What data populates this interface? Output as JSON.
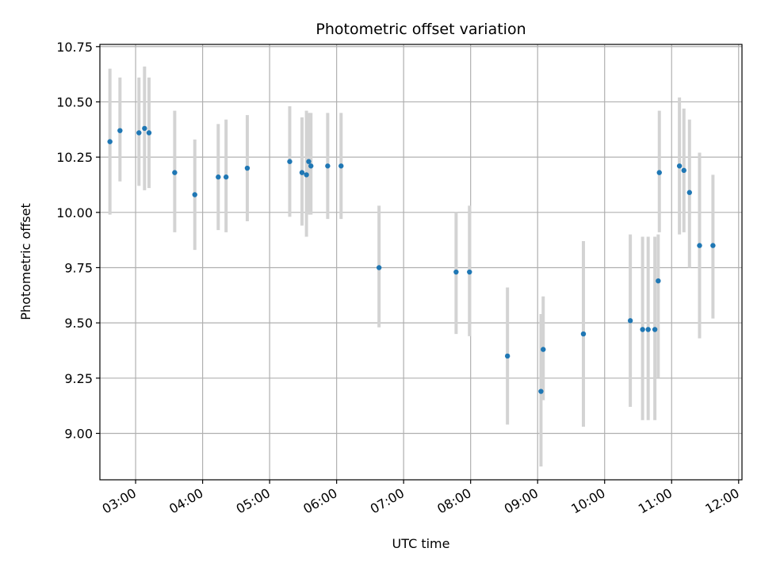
{
  "chart_data": {
    "type": "scatter",
    "title": "Photometric offset variation",
    "xlabel": "UTC time",
    "ylabel": "Photometric offset",
    "x_axis_kind": "time",
    "xlim": [
      "02:28",
      "12:03"
    ],
    "ylim": [
      8.79,
      10.76
    ],
    "grid": true,
    "xticks": [
      "03:00",
      "04:00",
      "05:00",
      "06:00",
      "07:00",
      "08:00",
      "09:00",
      "10:00",
      "11:00",
      "12:00"
    ],
    "yticks": [
      "9.00",
      "9.25",
      "9.50",
      "9.75",
      "10.00",
      "10.25",
      "10.50",
      "10.75"
    ],
    "colors": {
      "point": "#1f77b4",
      "errorbar": "#d3d3d3",
      "grid": "#b0b0b0"
    },
    "series": [
      {
        "points": [
          {
            "x": "02:37",
            "y": 10.32,
            "ylow": 9.99,
            "yhigh": 10.65
          },
          {
            "x": "02:46",
            "y": 10.37,
            "ylow": 10.14,
            "yhigh": 10.61
          },
          {
            "x": "03:03",
            "y": 10.36,
            "ylow": 10.12,
            "yhigh": 10.61
          },
          {
            "x": "03:08",
            "y": 10.38,
            "ylow": 10.1,
            "yhigh": 10.66
          },
          {
            "x": "03:12",
            "y": 10.36,
            "ylow": 10.11,
            "yhigh": 10.61
          },
          {
            "x": "03:35",
            "y": 10.18,
            "ylow": 9.91,
            "yhigh": 10.46
          },
          {
            "x": "03:53",
            "y": 10.08,
            "ylow": 9.83,
            "yhigh": 10.33
          },
          {
            "x": "04:14",
            "y": 10.16,
            "ylow": 9.92,
            "yhigh": 10.4
          },
          {
            "x": "04:21",
            "y": 10.16,
            "ylow": 9.91,
            "yhigh": 10.42
          },
          {
            "x": "04:40",
            "y": 10.2,
            "ylow": 9.96,
            "yhigh": 10.44
          },
          {
            "x": "05:18",
            "y": 10.23,
            "ylow": 9.98,
            "yhigh": 10.48
          },
          {
            "x": "05:29",
            "y": 10.18,
            "ylow": 9.94,
            "yhigh": 10.43
          },
          {
            "x": "05:33",
            "y": 10.17,
            "ylow": 9.89,
            "yhigh": 10.46
          },
          {
            "x": "05:35",
            "y": 10.23,
            "ylow": 9.99,
            "yhigh": 10.45
          },
          {
            "x": "05:37",
            "y": 10.21,
            "ylow": 9.99,
            "yhigh": 10.45
          },
          {
            "x": "05:52",
            "y": 10.21,
            "ylow": 9.97,
            "yhigh": 10.45
          },
          {
            "x": "06:04",
            "y": 10.21,
            "ylow": 9.97,
            "yhigh": 10.45
          },
          {
            "x": "06:38",
            "y": 9.75,
            "ylow": 9.48,
            "yhigh": 10.03
          },
          {
            "x": "07:47",
            "y": 9.73,
            "ylow": 9.45,
            "yhigh": 10.0
          },
          {
            "x": "07:59",
            "y": 9.73,
            "ylow": 9.44,
            "yhigh": 10.03
          },
          {
            "x": "08:33",
            "y": 9.35,
            "ylow": 9.04,
            "yhigh": 9.66
          },
          {
            "x": "09:03",
            "y": 9.19,
            "ylow": 8.85,
            "yhigh": 9.54
          },
          {
            "x": "09:05",
            "y": 9.38,
            "ylow": 9.15,
            "yhigh": 9.62
          },
          {
            "x": "09:41",
            "y": 9.45,
            "ylow": 9.03,
            "yhigh": 9.87
          },
          {
            "x": "10:23",
            "y": 9.51,
            "ylow": 9.12,
            "yhigh": 9.9
          },
          {
            "x": "10:34",
            "y": 9.47,
            "ylow": 9.06,
            "yhigh": 9.89
          },
          {
            "x": "10:39",
            "y": 9.47,
            "ylow": 9.06,
            "yhigh": 9.89
          },
          {
            "x": "10:45",
            "y": 9.47,
            "ylow": 9.06,
            "yhigh": 9.89
          },
          {
            "x": "10:48",
            "y": 9.69,
            "ylow": 9.25,
            "yhigh": 9.9
          },
          {
            "x": "10:49",
            "y": 10.18,
            "ylow": 9.91,
            "yhigh": 10.46
          },
          {
            "x": "11:07",
            "y": 10.21,
            "ylow": 9.9,
            "yhigh": 10.52
          },
          {
            "x": "11:11",
            "y": 10.19,
            "ylow": 9.91,
            "yhigh": 10.47
          },
          {
            "x": "11:16",
            "y": 10.09,
            "ylow": 9.75,
            "yhigh": 10.42
          },
          {
            "x": "11:25",
            "y": 9.85,
            "ylow": 9.43,
            "yhigh": 10.27
          },
          {
            "x": "11:37",
            "y": 9.85,
            "ylow": 9.52,
            "yhigh": 10.17
          }
        ]
      }
    ]
  }
}
